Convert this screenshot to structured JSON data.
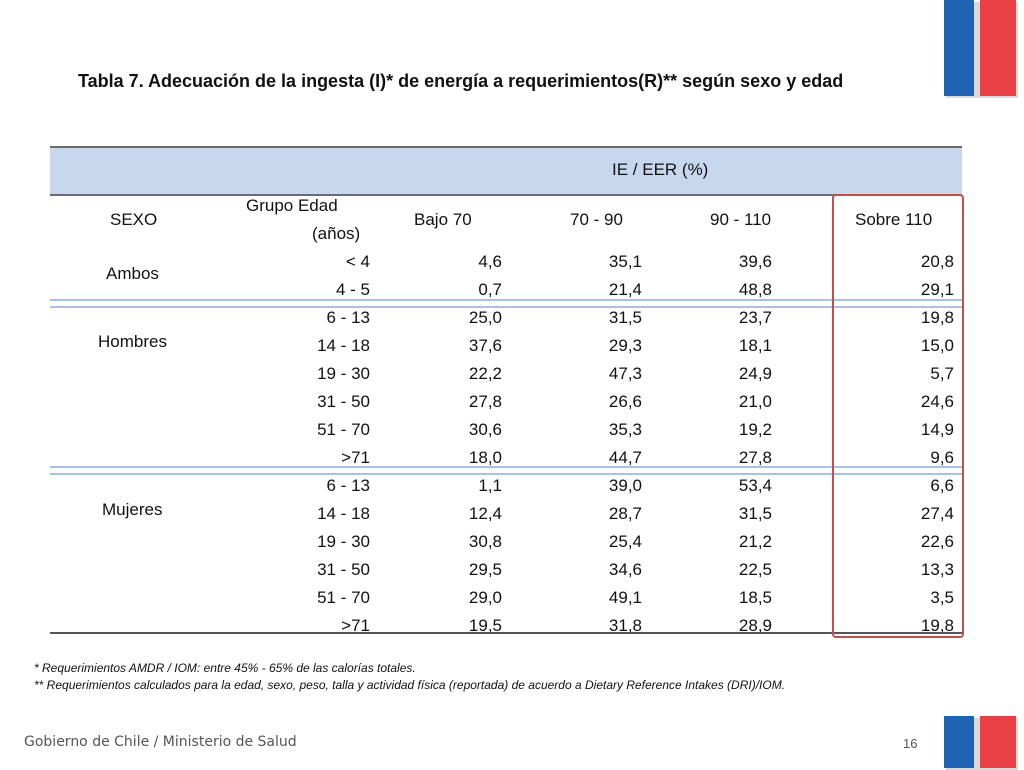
{
  "title": "Tabla 7. Adecuación de la ingesta (I)* de energía a requerimientos(R)** según sexo y edad",
  "table": {
    "group_header": "IE / EER (%)",
    "headers": {
      "sexo": "SEXO",
      "grupo_edad_line1": "Grupo Edad",
      "grupo_edad_line2": "(años)",
      "col1": "Bajo 70",
      "col2": "70 - 90",
      "col3": "90 - 110",
      "col4": "Sobre 110"
    },
    "groups": [
      {
        "sexo": "Ambos",
        "rows": [
          {
            "age": "< 4",
            "v1": "4,6",
            "v2": "35,1",
            "v3": "39,6",
            "v4": "20,8"
          },
          {
            "age": "4 - 5",
            "v1": "0,7",
            "v2": "21,4",
            "v3": "48,8",
            "v4": "29,1"
          }
        ]
      },
      {
        "sexo": "Hombres",
        "rows": [
          {
            "age": "6 - 13",
            "v1": "25,0",
            "v2": "31,5",
            "v3": "23,7",
            "v4": "19,8"
          },
          {
            "age": "14 - 18",
            "v1": "37,6",
            "v2": "29,3",
            "v3": "18,1",
            "v4": "15,0"
          },
          {
            "age": "19 - 30",
            "v1": "22,2",
            "v2": "47,3",
            "v3": "24,9",
            "v4": "5,7"
          },
          {
            "age": "31 - 50",
            "v1": "27,8",
            "v2": "26,6",
            "v3": "21,0",
            "v4": "24,6"
          },
          {
            "age": "51 - 70",
            "v1": "30,6",
            "v2": "35,3",
            "v3": "19,2",
            "v4": "14,9"
          },
          {
            "age": ">71",
            "v1": "18,0",
            "v2": "44,7",
            "v3": "27,8",
            "v4": "9,6"
          }
        ]
      },
      {
        "sexo": "Mujeres",
        "rows": [
          {
            "age": "6 - 13",
            "v1": "1,1",
            "v2": "39,0",
            "v3": "53,4",
            "v4": "6,6"
          },
          {
            "age": "14 - 18",
            "v1": "12,4",
            "v2": "28,7",
            "v3": "31,5",
            "v4": "27,4"
          },
          {
            "age": "19 - 30",
            "v1": "30,8",
            "v2": "25,4",
            "v3": "21,2",
            "v4": "22,6"
          },
          {
            "age": "31 - 50",
            "v1": "29,5",
            "v2": "34,6",
            "v3": "22,5",
            "v4": "13,3"
          },
          {
            "age": "51 - 70",
            "v1": "29,0",
            "v2": "49,1",
            "v3": "18,5",
            "v4": "3,5"
          },
          {
            "age": ">71",
            "v1": "19,5",
            "v2": "31,8",
            "v3": "28,9",
            "v4": "19,8"
          }
        ]
      }
    ]
  },
  "notes": [
    "* Requerimientos AMDR / IOM: entre 45% - 65% de las calorías totales.",
    "** Requerimientos calculados para la edad, sexo, peso, talla y actividad física (reportada) de acuerdo a Dietary Reference Intakes (DRI)/IOM."
  ],
  "footer": "Gobierno de Chile / Ministerio de Salud",
  "page_number": "16",
  "colors": {
    "header_band": "#c7d7ee",
    "highlight_border": "#c0504d",
    "logo_blue": "#1f63b3",
    "logo_red": "#e94045"
  }
}
